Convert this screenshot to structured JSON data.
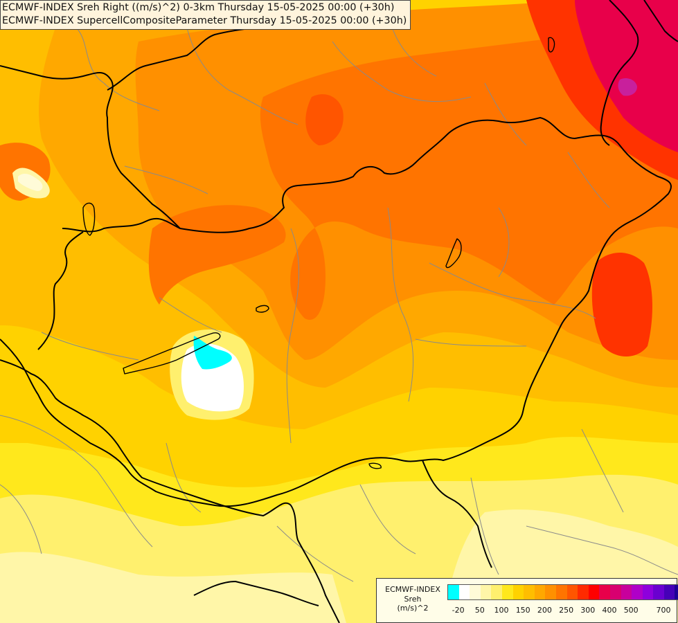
{
  "header": {
    "line1": "ECMWF-INDEX Sreh Right ((m/s)^2) 0-3km Thursday 15-05-2025 00:00 (+30h)",
    "line2": "ECMWF-INDEX SupercellCompositeParameter Thursday 15-05-2025 00:00 (+30h)"
  },
  "legend": {
    "title": [
      "ECMWF-INDEX",
      "Sreh",
      "(m/s)^2"
    ],
    "colors": [
      "#00ffff",
      "#ffffff",
      "#fffbd8",
      "#fff6a8",
      "#fff06e",
      "#ffe81c",
      "#ffd200",
      "#ffbe00",
      "#ffa800",
      "#ff9000",
      "#ff7400",
      "#ff5500",
      "#ff2a00",
      "#ff0000",
      "#e8004a",
      "#d80070",
      "#c8009c",
      "#b000c8",
      "#8e00dc",
      "#6a00d0",
      "#4600b8",
      "#1e0096"
    ],
    "ticks": [
      "-20",
      "50",
      "100",
      "150",
      "200",
      "250",
      "300",
      "400",
      "500",
      "700"
    ]
  },
  "map": {
    "field_colors": {
      "pale": "#fffbd8",
      "lightyellow": "#fff06e",
      "yellow": "#ffe81c",
      "gold": "#ffd200",
      "amber": "#ffbe00",
      "orange": "#ffa800",
      "darkorange": "#ff9000",
      "redorange": "#ff7400",
      "red": "#ff3300",
      "crimson": "#e8004a",
      "magenta": "#c8209c",
      "cyan": "#00ffff",
      "white": "#ffffff"
    }
  }
}
